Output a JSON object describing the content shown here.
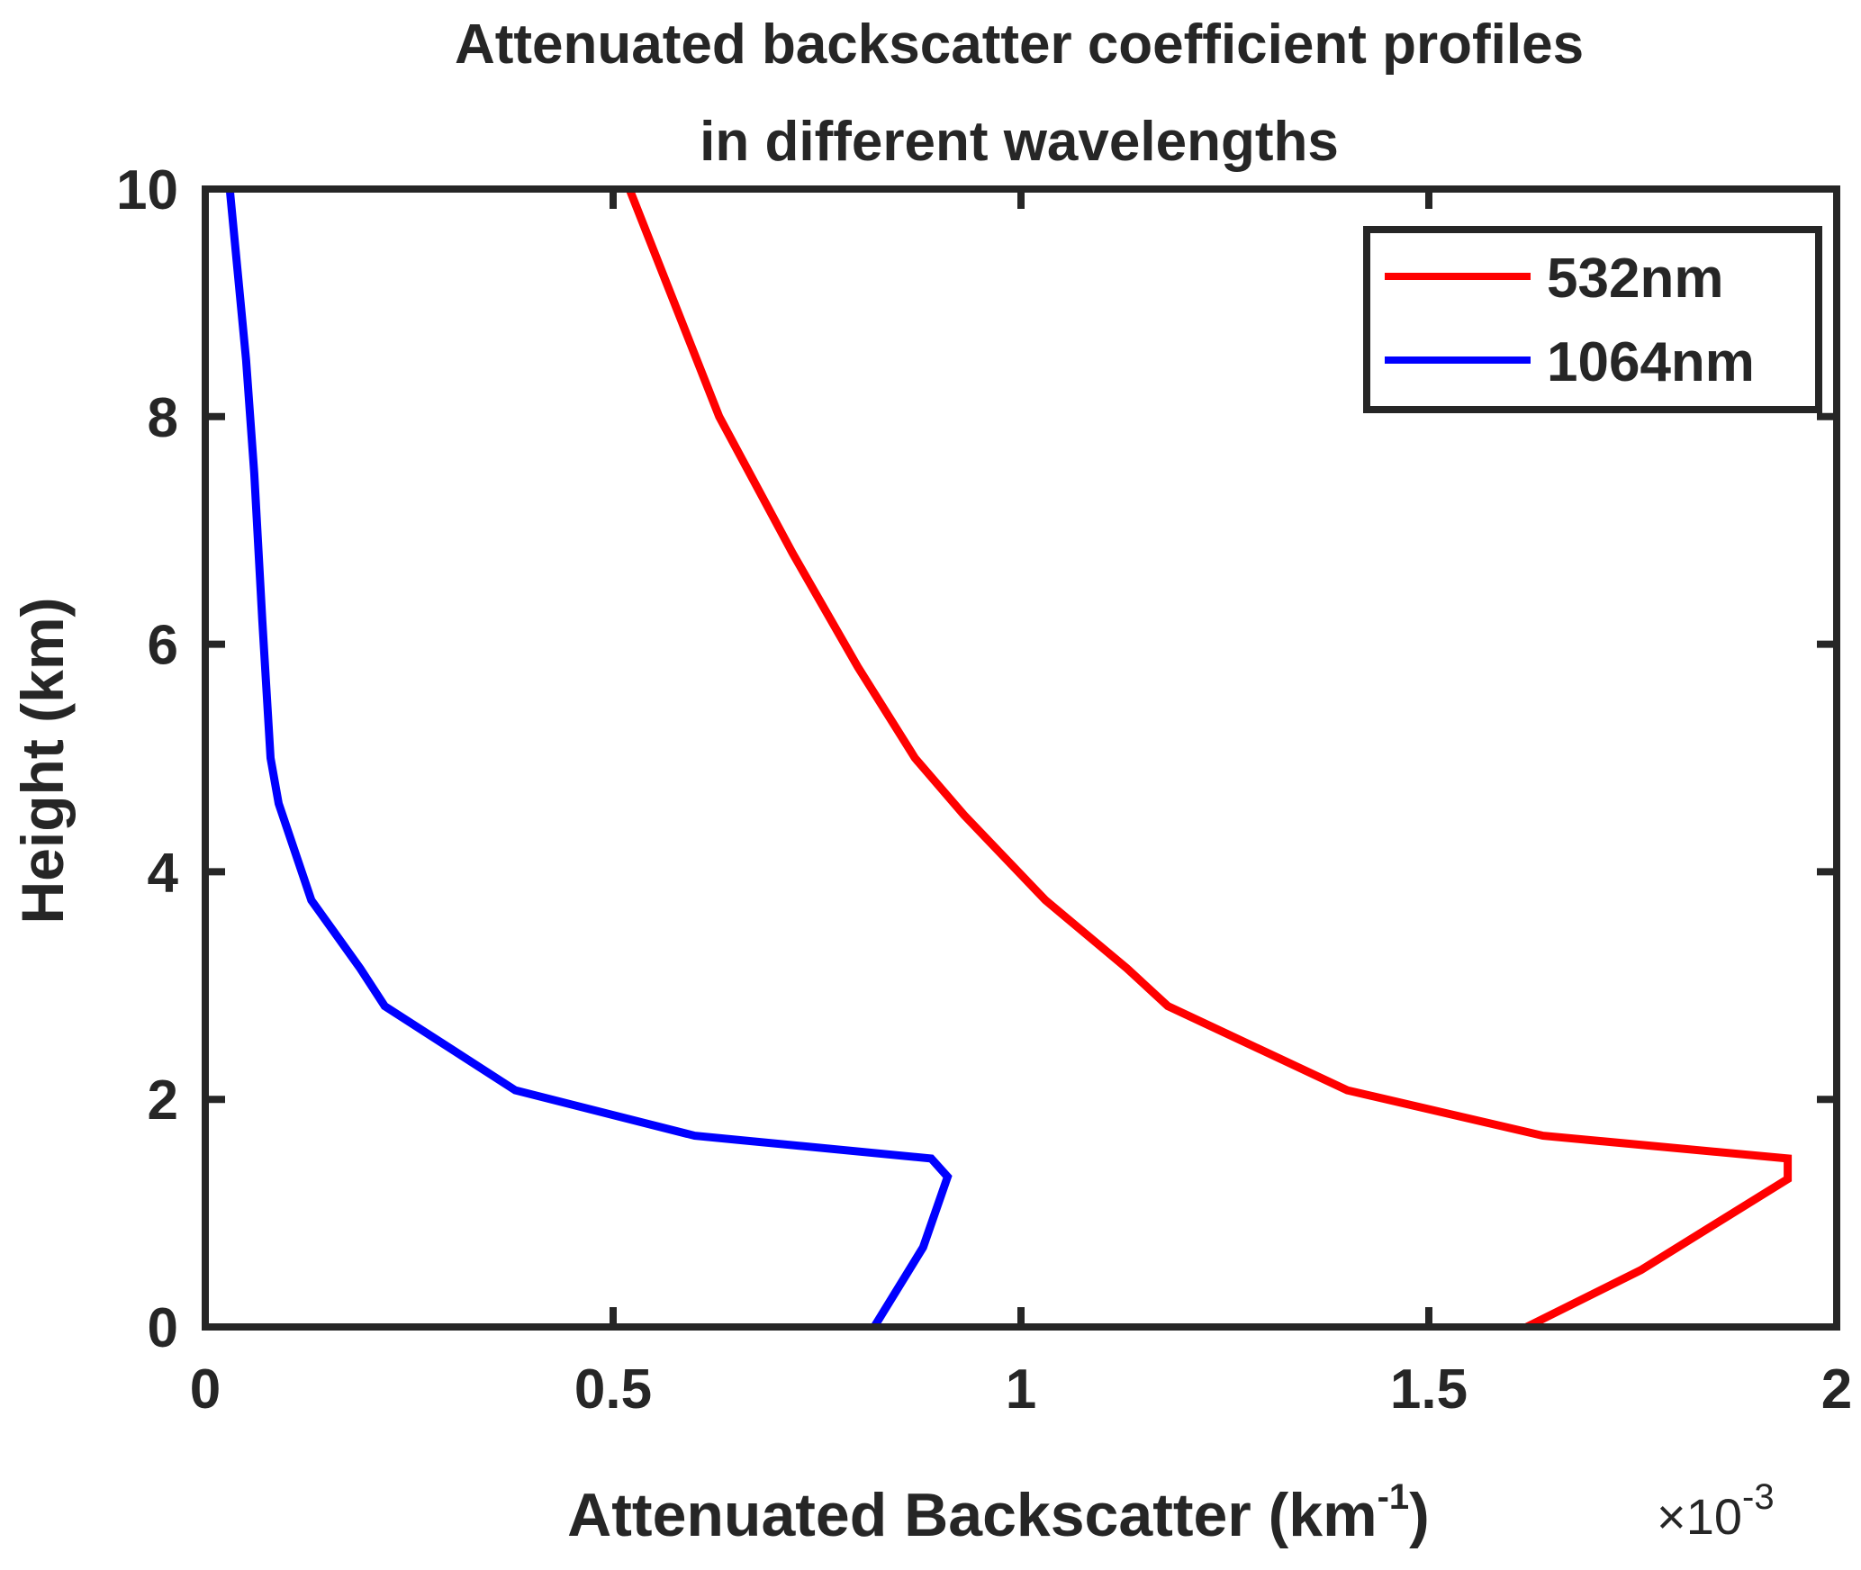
{
  "chart_data": {
    "type": "line",
    "title_lines": [
      "Attenuated backscatter coefficient profiles",
      "in different wavelengths"
    ],
    "xlabel": {
      "main": "Attenuated Backscatter (km",
      "superscript": "-1",
      "close": ")"
    },
    "x_exponent": {
      "base": "×10",
      "power": "-3"
    },
    "ylabel": "Height (km)",
    "xlim": [
      0,
      2
    ],
    "ylim": [
      0,
      10
    ],
    "x_ticks": [
      0,
      0.5,
      1,
      1.5,
      2
    ],
    "x_tick_labels": [
      "0",
      "0.5",
      "1",
      "1.5",
      "2"
    ],
    "y_ticks": [
      0,
      2,
      4,
      6,
      8,
      10
    ],
    "y_tick_labels": [
      "0",
      "2",
      "4",
      "6",
      "8",
      "10"
    ],
    "x_unit_scale": "1e-3",
    "grid": false,
    "legend_position": "top-right",
    "series": [
      {
        "name": "532nm",
        "color": "#ff0000",
        "points": [
          [
            1.62,
            0.0
          ],
          [
            1.76,
            0.5
          ],
          [
            1.94,
            1.3
          ],
          [
            1.94,
            1.48
          ],
          [
            1.64,
            1.68
          ],
          [
            1.4,
            2.08
          ],
          [
            1.29,
            2.45
          ],
          [
            1.18,
            2.82
          ],
          [
            1.13,
            3.15
          ],
          [
            1.03,
            3.75
          ],
          [
            0.93,
            4.5
          ],
          [
            0.87,
            5.0
          ],
          [
            0.8,
            5.8
          ],
          [
            0.72,
            6.8
          ],
          [
            0.63,
            8.0
          ],
          [
            0.52,
            10.0
          ]
        ]
      },
      {
        "name": "1064nm",
        "color": "#0000ff",
        "points": [
          [
            0.82,
            0.0
          ],
          [
            0.88,
            0.7
          ],
          [
            0.91,
            1.32
          ],
          [
            0.89,
            1.48
          ],
          [
            0.6,
            1.68
          ],
          [
            0.38,
            2.08
          ],
          [
            0.22,
            2.82
          ],
          [
            0.19,
            3.15
          ],
          [
            0.13,
            3.75
          ],
          [
            0.09,
            4.6
          ],
          [
            0.08,
            5.0
          ],
          [
            0.07,
            6.2
          ],
          [
            0.06,
            7.5
          ],
          [
            0.05,
            8.5
          ],
          [
            0.03,
            10.0
          ]
        ]
      }
    ]
  }
}
